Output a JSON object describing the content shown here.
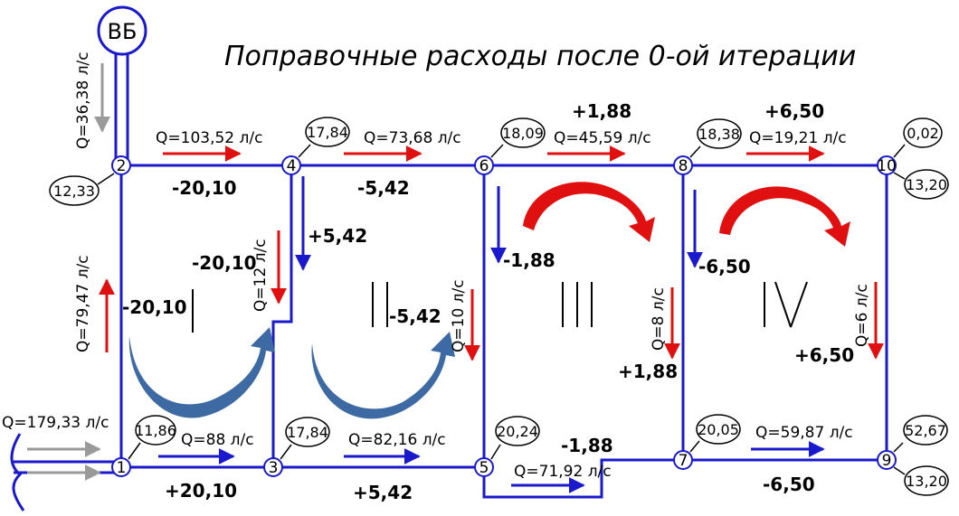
{
  "title": "Поправочные расходы после 0-ой итерации",
  "tower_label": "ВБ",
  "inlet_label": "Q=179,33 л/с",
  "nodes": [
    {
      "id": "1",
      "demand": "11,86"
    },
    {
      "id": "2",
      "demand": "12,33"
    },
    {
      "id": "3",
      "demand": "17,84"
    },
    {
      "id": "4",
      "demand": "17,84"
    },
    {
      "id": "5",
      "demand": "20,24"
    },
    {
      "id": "6",
      "demand": "18,09"
    },
    {
      "id": "7",
      "demand": "20,05"
    },
    {
      "id": "8",
      "demand": "18,38"
    },
    {
      "id": "9",
      "demand": "52,67"
    },
    {
      "id": "10",
      "demand": "0,02"
    },
    {
      "id": "9b",
      "demand": "13,20"
    },
    {
      "id": "10b",
      "demand": "13,20"
    }
  ],
  "flow_labels": [
    "Q=36,38 л/с",
    "Q=103,52 л/с",
    "Q=73,68 л/с",
    "Q=45,59 л/с",
    "Q=19,21 л/с",
    "Q=79,47 л/с",
    "Q=12 л/с",
    "Q=10 л/с",
    "Q=8 л/с",
    "Q=6 л/с",
    "Q=88 л/с",
    "Q=82,16 л/с",
    "Q=71,92 л/с",
    "Q=59,87 л/с"
  ],
  "corrections": [
    "-20,10",
    "-5,42",
    "+1,88",
    "+6,50",
    "+5,42",
    "-20,10",
    "-20,10",
    "-5,42",
    "-1,88",
    "-6,50",
    "+1,88",
    "+6,50",
    "+20,10",
    "+5,42",
    "-1,88",
    "-6,50"
  ],
  "rings": [
    "I",
    "II",
    "III",
    "IV"
  ],
  "colors": {
    "pipe": "#1a1acc",
    "red": "#e01010",
    "blue": "#1a1acc",
    "gray": "#9a9a9a",
    "curve": "#3d6aa3"
  }
}
